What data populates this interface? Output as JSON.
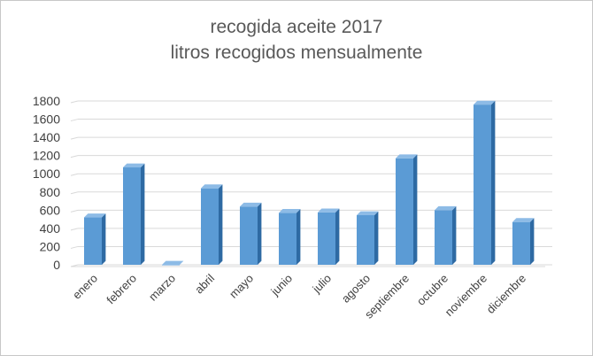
{
  "chart_data": {
    "type": "bar",
    "title": "recogida aceite 2017",
    "subtitle": "litros recogidos mensualmente",
    "xlabel": "",
    "ylabel": "",
    "categories": [
      "enero",
      "febrero",
      "marzo",
      "abril",
      "mayo",
      "junio",
      "julio",
      "agosto",
      "septiembre",
      "octubre",
      "noviembre",
      "diciembre"
    ],
    "values": [
      520,
      1070,
      0,
      840,
      640,
      570,
      575,
      545,
      1170,
      600,
      1760,
      470
    ],
    "ylim": [
      0,
      1800
    ],
    "yticks": [
      0,
      200,
      400,
      600,
      800,
      1000,
      1200,
      1400,
      1600,
      1800
    ],
    "grid": true,
    "legend": "none",
    "bar_color": "#5b9bd5",
    "bar_side_color": "#2e6aa3",
    "bar_top_color": "#8dbbe6",
    "style": "3d-column"
  }
}
